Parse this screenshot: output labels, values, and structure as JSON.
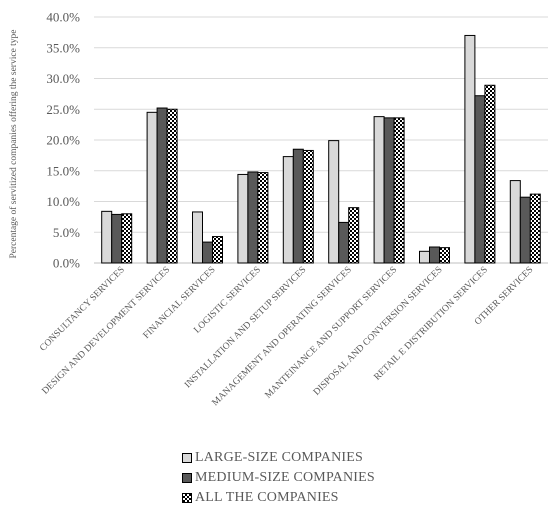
{
  "chart_data": {
    "type": "bar",
    "ylabel": "Percentage of servitized companies offering the service type",
    "ylim": [
      0,
      40
    ],
    "yticks": [
      "0.0%",
      "5.0%",
      "10.0%",
      "15.0%",
      "20.0%",
      "25.0%",
      "30.0%",
      "35.0%",
      "40.0%"
    ],
    "categories": [
      "CONSULTANCY SERVICES",
      "DESIGN AND DEVELOPMENT SERVICES",
      "FINANCIAL SERVICES",
      "LOGISTIC SERVICES",
      "INSTALLATION AND SETUP SERVICES",
      "MANAGEMENT AND OPERATING SERVICES",
      "MANTEINANCE AND SUPPORT SERVICES",
      "DISPOSAL AND CONVERSION SERVICES",
      "RETAIL E DISTRIBUTION SERVICES",
      "OTHER SERVICES"
    ],
    "series": [
      {
        "name": "LARGE-SIZE COMPANIES",
        "color": "#d9d9d9",
        "pattern": "solid-light",
        "values": [
          8.4,
          24.5,
          8.3,
          14.4,
          17.3,
          19.9,
          23.8,
          1.9,
          37.0,
          13.4
        ]
      },
      {
        "name": "MEDIUM-SIZE COMPANIES",
        "color": "#595959",
        "pattern": "solid-dark",
        "values": [
          7.9,
          25.2,
          3.4,
          14.8,
          18.5,
          6.6,
          23.6,
          2.6,
          27.2,
          10.7
        ]
      },
      {
        "name": "ALL THE COMPANIES",
        "color": "#ffffff",
        "pattern": "checker",
        "values": [
          8.0,
          25.0,
          4.3,
          14.7,
          18.3,
          9.0,
          23.6,
          2.5,
          28.9,
          11.2
        ]
      }
    ],
    "legend_position": "bottom",
    "grid": true
  }
}
